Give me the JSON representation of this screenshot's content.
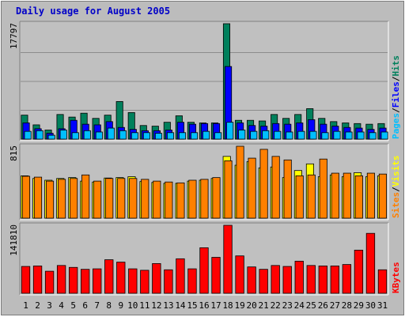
{
  "chart_data": {
    "type": "bar",
    "title": "Daily usage for August 2005",
    "categories": [
      "1",
      "2",
      "3",
      "4",
      "5",
      "6",
      "7",
      "8",
      "9",
      "10",
      "11",
      "12",
      "13",
      "14",
      "15",
      "16",
      "17",
      "18",
      "19",
      "20",
      "21",
      "22",
      "23",
      "24",
      "25",
      "26",
      "27",
      "28",
      "29",
      "30",
      "31"
    ],
    "weekend_days": [
      "6",
      "7",
      "13",
      "14",
      "20",
      "21",
      "27",
      "28"
    ],
    "panels": [
      {
        "max_label": "17797",
        "ylim": [
          0,
          17797
        ],
        "legend": [
          "Pages",
          "/",
          "Files",
          "/",
          "Hits"
        ],
        "series": [
          {
            "name": "Hits",
            "color": "#00805c",
            "values": [
              3700,
              2200,
              1400,
              3800,
              3400,
              4000,
              3200,
              3700,
              5800,
              4100,
              2100,
              2000,
              2600,
              3600,
              2600,
              2500,
              2500,
              17797,
              2900,
              2900,
              2800,
              3800,
              3200,
              3800,
              4700,
              3200,
              2700,
              2500,
              2400,
              2300,
              2400
            ]
          },
          {
            "name": "Files",
            "color": "#0000ff",
            "values": [
              2500,
              1600,
              900,
              1600,
              2900,
              2300,
              2200,
              2700,
              1800,
              1500,
              1300,
              1300,
              1400,
              2600,
              2300,
              2400,
              2400,
              11200,
              2500,
              2100,
              2000,
              2400,
              2300,
              2500,
              3000,
              2300,
              2000,
              1800,
              1700,
              1500,
              1700
            ]
          },
          {
            "name": "Pages",
            "color": "#00bfff",
            "values": [
              1200,
              1300,
              600,
              1400,
              1000,
              1300,
              1100,
              1700,
              1300,
              1000,
              1000,
              900,
              1000,
              1000,
              1000,
              1200,
              1000,
              2600,
              1400,
              1200,
              1300,
              1200,
              1100,
              1200,
              1200,
              1000,
              1200,
              1100,
              1100,
              1000,
              1100
            ]
          }
        ]
      },
      {
        "max_label": "815",
        "ylim": [
          0,
          815
        ],
        "legend": [
          "Sites",
          "/",
          "Visits"
        ],
        "series": [
          {
            "name": "Visits",
            "color": "#ffff00",
            "values": [
              480,
              450,
              430,
              450,
              460,
              420,
              410,
              455,
              460,
              470,
              415,
              405,
              395,
              395,
              420,
              430,
              450,
              700,
              600,
              640,
              570,
              580,
              460,
              540,
              615,
              470,
              490,
              470,
              515,
              470,
              480
            ]
          },
          {
            "name": "Sites",
            "color": "#ff8000",
            "values": [
              475,
              465,
              420,
              440,
              450,
              490,
              420,
              450,
              450,
              450,
              440,
              420,
              410,
              400,
              430,
              440,
              460,
              650,
              815,
              680,
              780,
              700,
              660,
              480,
              490,
              670,
              510,
              510,
              480,
              510,
              500
            ]
          }
        ]
      },
      {
        "max_label": "141810",
        "ylim": [
          0,
          141810
        ],
        "legend": [
          "KBytes"
        ],
        "series": [
          {
            "name": "KBytes",
            "color": "#ff0000",
            "values": [
              56000,
              57000,
              46000,
              58000,
              54000,
              50000,
              51000,
              70000,
              65000,
              51000,
              48000,
              62000,
              49000,
              72000,
              51000,
              95000,
              75000,
              141810,
              78000,
              55000,
              50000,
              58000,
              56000,
              67000,
              58000,
              57000,
              57000,
              60000,
              90000,
              125000,
              49000
            ]
          }
        ]
      }
    ]
  },
  "colors": {
    "background": "#bcbcbc",
    "plot_background": "#c0c0c0",
    "title": "#0000c8",
    "weekend_label": "#00805c",
    "weekday_label": "#000000",
    "Pages": "#00bfff",
    "Files": "#0000ff",
    "Hits": "#00805c",
    "Sites": "#ff8000",
    "Visits": "#ffff00",
    "KBytes": "#ff0000"
  }
}
